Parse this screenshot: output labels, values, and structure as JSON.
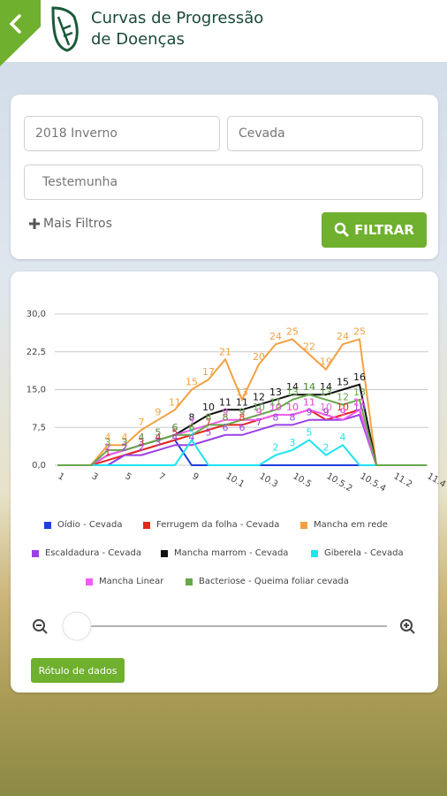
{
  "header": {
    "title_line1": "Curvas de Progressão",
    "title_line2": "de Doenças"
  },
  "filters": {
    "season": "2018 Inverno",
    "crop": "Cevada",
    "treatment": "Testemunha",
    "more": "Mais Filtros",
    "button": "FILTRAR"
  },
  "chart_data": {
    "type": "line",
    "categories": [
      "1",
      null,
      "3",
      null,
      "5",
      null,
      "7",
      null,
      "9",
      null,
      "10.1",
      null,
      "10.3",
      null,
      "10.5",
      null,
      "10.5.2",
      null,
      "10.5.4",
      null,
      "11.2",
      null,
      "11.4"
    ],
    "ylim": [
      0,
      30
    ],
    "yticks": [
      {
        "value": 0,
        "label": "0,0"
      },
      {
        "value": 7.5,
        "label": "7,5"
      },
      {
        "value": 15,
        "label": "15,0"
      },
      {
        "value": 22.5,
        "label": "22,5"
      },
      {
        "value": 30,
        "label": "30,0"
      }
    ],
    "grid": true,
    "series": [
      {
        "name": "Oídio - Cevada",
        "color": "#1f3fdc",
        "values": [
          0,
          0,
          0,
          0,
          2,
          3,
          4,
          5,
          0,
          0,
          0,
          0,
          0,
          0,
          0,
          0,
          0,
          0,
          0,
          0,
          0,
          0,
          0
        ]
      },
      {
        "name": "Ferrugem da folha - Cevada",
        "color": "#e8261b",
        "values": [
          0,
          0,
          0,
          1,
          2,
          3,
          4,
          5,
          6,
          7,
          8,
          8,
          9,
          10,
          10,
          11,
          9,
          10,
          11,
          0,
          0,
          0,
          0
        ]
      },
      {
        "name": "Mancha em rede",
        "color": "#f4a040",
        "values": [
          0,
          0,
          0,
          4,
          4,
          7,
          9,
          11,
          15,
          17,
          21,
          13,
          20,
          24,
          25,
          22,
          19,
          24,
          25,
          0,
          0,
          0,
          0
        ]
      },
      {
        "name": "Escaldadura - Cevada",
        "color": "#9b40e6",
        "values": [
          0,
          0,
          0,
          0,
          2,
          2,
          3,
          4,
          4,
          5,
          6,
          6,
          7,
          8,
          8,
          9,
          9,
          9,
          10,
          0,
          0,
          0,
          0
        ]
      },
      {
        "name": "Mancha marrom - Cevada",
        "color": "#111111",
        "values": [
          0,
          0,
          0,
          2,
          3,
          4,
          5,
          6,
          8,
          10,
          11,
          11,
          12,
          13,
          14,
          14,
          14,
          15,
          16,
          0,
          0,
          0,
          0
        ]
      },
      {
        "name": "Giberela - Cevada",
        "color": "#1de4f0",
        "values": [
          0,
          0,
          0,
          0,
          0,
          0,
          0,
          0,
          5,
          0,
          0,
          0,
          0,
          2,
          3,
          5,
          2,
          4,
          0,
          0,
          0,
          0,
          0
        ]
      },
      {
        "name": "Mancha Linear",
        "color": "#ef5cf0",
        "values": [
          0,
          0,
          0,
          2,
          3,
          4,
          5,
          6,
          7,
          8,
          9,
          9,
          9,
          10,
          10,
          11,
          10,
          9,
          11,
          0,
          0,
          0,
          0
        ]
      },
      {
        "name": "Bacteriose - Queima foliar cevada",
        "color": "#67a84a",
        "values": [
          0,
          0,
          0,
          3,
          3,
          4,
          5,
          6,
          6,
          8,
          8,
          9,
          10,
          11,
          13,
          14,
          13,
          12,
          13,
          0,
          0,
          0,
          0
        ]
      }
    ],
    "legend": "bottom"
  },
  "controls": {
    "data_labels_button": "Rótulo de dados"
  }
}
